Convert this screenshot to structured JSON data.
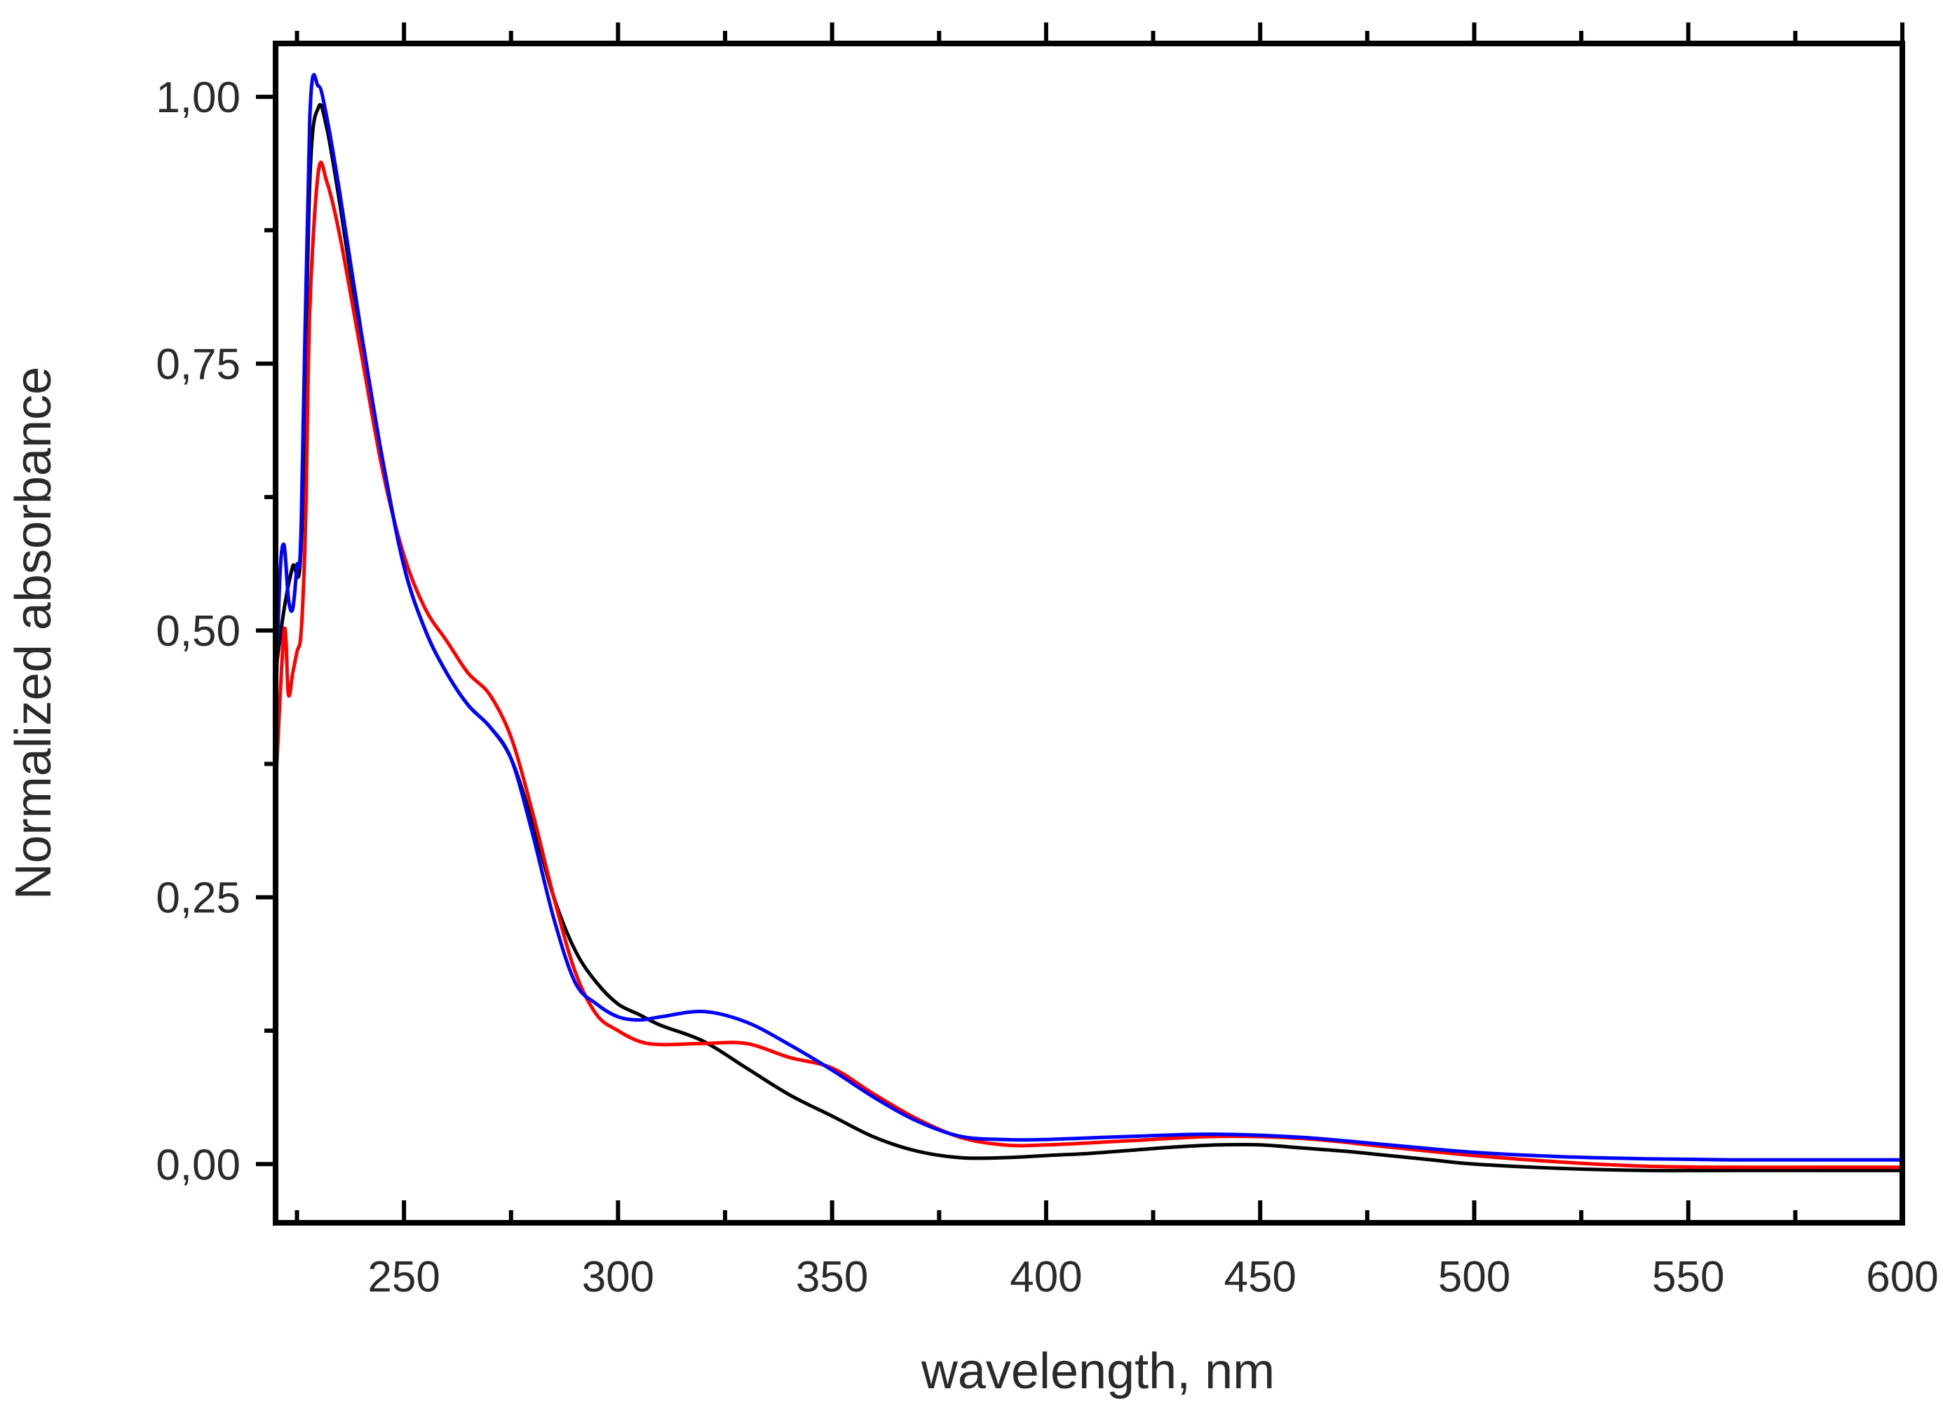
{
  "chart_data": {
    "type": "line",
    "title": "",
    "xlabel": "wavelength, nm",
    "ylabel": "Normalized absorbance",
    "xlim": [
      220,
      600
    ],
    "ylim": [
      -0.055,
      1.05
    ],
    "x_ticks": [
      250,
      300,
      350,
      400,
      450,
      500,
      550,
      600
    ],
    "x_tick_labels": [
      "250",
      "300",
      "350",
      "400",
      "450",
      "500",
      "550",
      "600"
    ],
    "y_ticks": [
      0.0,
      0.25,
      0.5,
      0.75,
      1.0
    ],
    "y_tick_labels": [
      "0,00",
      "0,25",
      "0,50",
      "0,75",
      "1,00"
    ],
    "grid": false,
    "legend": "none",
    "series": [
      {
        "name": "black",
        "color": "#000000",
        "x": [
          220,
          222,
          224,
          226,
          228,
          230,
          232,
          235,
          240,
          245,
          250,
          255,
          260,
          265,
          270,
          275,
          280,
          285,
          290,
          295,
          300,
          305,
          310,
          320,
          330,
          340,
          350,
          360,
          370,
          380,
          390,
          400,
          410,
          420,
          430,
          440,
          450,
          460,
          470,
          480,
          490,
          500,
          520,
          540,
          560,
          580,
          600
        ],
        "y": [
          0.46,
          0.52,
          0.56,
          0.58,
          0.92,
          0.99,
          0.97,
          0.9,
          0.77,
          0.66,
          0.56,
          0.5,
          0.46,
          0.43,
          0.41,
          0.38,
          0.32,
          0.25,
          0.2,
          0.17,
          0.15,
          0.14,
          0.13,
          0.115,
          0.09,
          0.065,
          0.045,
          0.025,
          0.012,
          0.006,
          0.006,
          0.008,
          0.01,
          0.013,
          0.016,
          0.018,
          0.018,
          0.015,
          0.012,
          0.008,
          0.004,
          0.0,
          -0.004,
          -0.006,
          -0.006,
          -0.006,
          -0.006
        ]
      },
      {
        "name": "red",
        "color": "#ff0000",
        "x": [
          220,
          222,
          223,
          224,
          225,
          226,
          227,
          228,
          230,
          232,
          235,
          240,
          245,
          250,
          255,
          260,
          265,
          270,
          275,
          280,
          285,
          290,
          295,
          300,
          305,
          310,
          320,
          330,
          340,
          350,
          360,
          370,
          380,
          390,
          400,
          420,
          440,
          460,
          480,
          500,
          520,
          540,
          560,
          580,
          600
        ],
        "y": [
          0.35,
          0.5,
          0.44,
          0.46,
          0.48,
          0.5,
          0.6,
          0.8,
          0.93,
          0.92,
          0.87,
          0.76,
          0.65,
          0.57,
          0.52,
          0.49,
          0.46,
          0.44,
          0.4,
          0.33,
          0.25,
          0.18,
          0.14,
          0.125,
          0.115,
          0.112,
          0.113,
          0.113,
          0.1,
          0.09,
          0.065,
          0.042,
          0.025,
          0.018,
          0.018,
          0.022,
          0.026,
          0.024,
          0.016,
          0.008,
          0.002,
          -0.002,
          -0.003,
          -0.003,
          -0.003
        ]
      },
      {
        "name": "blue",
        "color": "#0000ff",
        "x": [
          220,
          221,
          222,
          223,
          224,
          225,
          226,
          228,
          230,
          232,
          235,
          240,
          245,
          250,
          255,
          260,
          265,
          270,
          275,
          280,
          285,
          290,
          295,
          300,
          305,
          310,
          320,
          330,
          340,
          350,
          360,
          370,
          380,
          390,
          400,
          420,
          440,
          460,
          480,
          500,
          520,
          540,
          560,
          580,
          600
        ],
        "y": [
          0.42,
          0.55,
          0.58,
          0.53,
          0.52,
          0.56,
          0.6,
          0.98,
          1.01,
          0.98,
          0.91,
          0.78,
          0.66,
          0.56,
          0.5,
          0.46,
          0.43,
          0.41,
          0.38,
          0.31,
          0.23,
          0.17,
          0.15,
          0.138,
          0.135,
          0.138,
          0.143,
          0.133,
          0.112,
          0.088,
          0.062,
          0.04,
          0.026,
          0.023,
          0.023,
          0.026,
          0.028,
          0.025,
          0.018,
          0.011,
          0.007,
          0.005,
          0.004,
          0.004,
          0.004
        ]
      }
    ]
  }
}
